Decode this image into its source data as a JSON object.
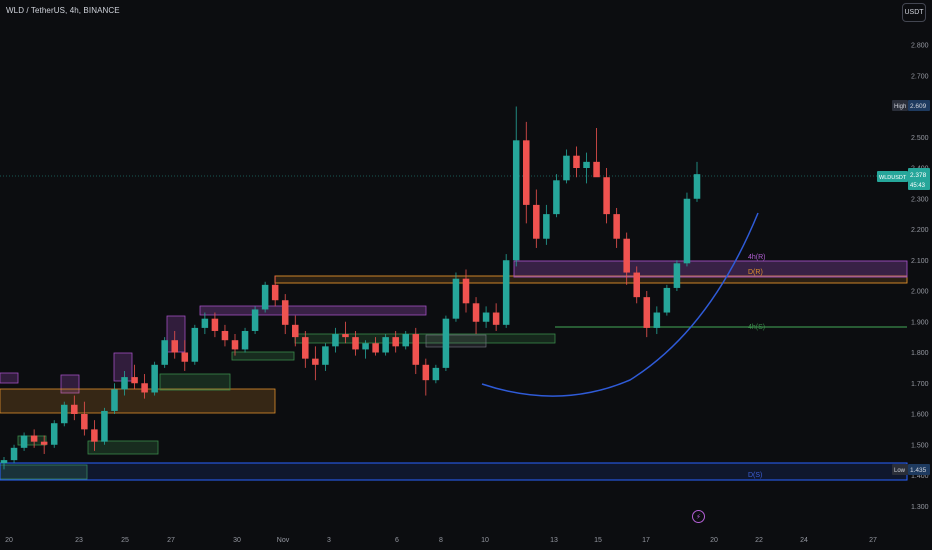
{
  "header": {
    "symbol_line": "WLD / TetherUS, 4h, BINANCE"
  },
  "currency": "USDT",
  "price_tags": {
    "high_label": "High",
    "high_value": "2.609",
    "current_symbol": "WLDUSDT",
    "current_value": "2.378",
    "countdown": "45:43",
    "low_label": "Low",
    "low_value": "1.435"
  },
  "zones": {
    "fourh_r": "4h(R)",
    "d_r": "D(R)",
    "fourh_s": "4h(S)",
    "d_s": "D(S)"
  },
  "colors": {
    "up": "#26a69a",
    "down": "#ef5350",
    "curve": "#2f5bd8",
    "purple_zone": "#a04fc0",
    "orange_zone": "#e0902c",
    "green_zone": "#3a8a4a",
    "blue_zone": "#2962ff"
  },
  "icons": {
    "events": "lightning-icon"
  },
  "chart_data": {
    "type": "candlestick",
    "y_ticks": [
      "2.800",
      "2.700",
      "2.600",
      "2.500",
      "2.400",
      "2.300",
      "2.200",
      "2.100",
      "2.000",
      "1.900",
      "1.800",
      "1.700",
      "1.600",
      "1.500",
      "1.400",
      "1.300"
    ],
    "x_ticks": [
      "20",
      "23",
      "25",
      "27",
      "30",
      "Nov",
      "3",
      "6",
      "8",
      "10",
      "13",
      "15",
      "17",
      "20",
      "22",
      "24",
      "27"
    ],
    "ylim": [
      1.25,
      2.85
    ],
    "candles": [
      {
        "o": 1.44,
        "h": 1.46,
        "l": 1.42,
        "c": 1.45
      },
      {
        "o": 1.45,
        "h": 1.5,
        "l": 1.44,
        "c": 1.49
      },
      {
        "o": 1.49,
        "h": 1.54,
        "l": 1.48,
        "c": 1.53
      },
      {
        "o": 1.53,
        "h": 1.55,
        "l": 1.49,
        "c": 1.51
      },
      {
        "o": 1.51,
        "h": 1.53,
        "l": 1.47,
        "c": 1.5
      },
      {
        "o": 1.5,
        "h": 1.58,
        "l": 1.49,
        "c": 1.57
      },
      {
        "o": 1.57,
        "h": 1.64,
        "l": 1.56,
        "c": 1.63
      },
      {
        "o": 1.63,
        "h": 1.66,
        "l": 1.58,
        "c": 1.6
      },
      {
        "o": 1.6,
        "h": 1.64,
        "l": 1.53,
        "c": 1.55
      },
      {
        "o": 1.55,
        "h": 1.58,
        "l": 1.48,
        "c": 1.51
      },
      {
        "o": 1.51,
        "h": 1.62,
        "l": 1.5,
        "c": 1.61
      },
      {
        "o": 1.61,
        "h": 1.7,
        "l": 1.6,
        "c": 1.68
      },
      {
        "o": 1.68,
        "h": 1.74,
        "l": 1.66,
        "c": 1.72
      },
      {
        "o": 1.72,
        "h": 1.76,
        "l": 1.68,
        "c": 1.7
      },
      {
        "o": 1.7,
        "h": 1.73,
        "l": 1.65,
        "c": 1.67
      },
      {
        "o": 1.67,
        "h": 1.77,
        "l": 1.66,
        "c": 1.76
      },
      {
        "o": 1.76,
        "h": 1.85,
        "l": 1.75,
        "c": 1.84
      },
      {
        "o": 1.84,
        "h": 1.87,
        "l": 1.78,
        "c": 1.8
      },
      {
        "o": 1.8,
        "h": 1.84,
        "l": 1.74,
        "c": 1.77
      },
      {
        "o": 1.77,
        "h": 1.89,
        "l": 1.76,
        "c": 1.88
      },
      {
        "o": 1.88,
        "h": 1.93,
        "l": 1.86,
        "c": 1.91
      },
      {
        "o": 1.91,
        "h": 1.93,
        "l": 1.85,
        "c": 1.87
      },
      {
        "o": 1.87,
        "h": 1.89,
        "l": 1.82,
        "c": 1.84
      },
      {
        "o": 1.84,
        "h": 1.86,
        "l": 1.79,
        "c": 1.81
      },
      {
        "o": 1.81,
        "h": 1.88,
        "l": 1.8,
        "c": 1.87
      },
      {
        "o": 1.87,
        "h": 1.95,
        "l": 1.86,
        "c": 1.94
      },
      {
        "o": 1.94,
        "h": 2.03,
        "l": 1.93,
        "c": 2.02
      },
      {
        "o": 2.02,
        "h": 2.05,
        "l": 1.95,
        "c": 1.97
      },
      {
        "o": 1.97,
        "h": 1.99,
        "l": 1.86,
        "c": 1.89
      },
      {
        "o": 1.89,
        "h": 1.92,
        "l": 1.82,
        "c": 1.85
      },
      {
        "o": 1.85,
        "h": 1.87,
        "l": 1.75,
        "c": 1.78
      },
      {
        "o": 1.78,
        "h": 1.82,
        "l": 1.71,
        "c": 1.76
      },
      {
        "o": 1.76,
        "h": 1.83,
        "l": 1.74,
        "c": 1.82
      },
      {
        "o": 1.82,
        "h": 1.88,
        "l": 1.8,
        "c": 1.86
      },
      {
        "o": 1.86,
        "h": 1.9,
        "l": 1.83,
        "c": 1.85
      },
      {
        "o": 1.85,
        "h": 1.87,
        "l": 1.79,
        "c": 1.81
      },
      {
        "o": 1.81,
        "h": 1.84,
        "l": 1.78,
        "c": 1.83
      },
      {
        "o": 1.83,
        "h": 1.85,
        "l": 1.79,
        "c": 1.8
      },
      {
        "o": 1.8,
        "h": 1.86,
        "l": 1.79,
        "c": 1.85
      },
      {
        "o": 1.85,
        "h": 1.87,
        "l": 1.8,
        "c": 1.82
      },
      {
        "o": 1.82,
        "h": 1.87,
        "l": 1.81,
        "c": 1.86
      },
      {
        "o": 1.86,
        "h": 1.88,
        "l": 1.73,
        "c": 1.76
      },
      {
        "o": 1.76,
        "h": 1.78,
        "l": 1.66,
        "c": 1.71
      },
      {
        "o": 1.71,
        "h": 1.76,
        "l": 1.7,
        "c": 1.75
      },
      {
        "o": 1.75,
        "h": 1.92,
        "l": 1.74,
        "c": 1.91
      },
      {
        "o": 1.91,
        "h": 2.06,
        "l": 1.9,
        "c": 2.04
      },
      {
        "o": 2.04,
        "h": 2.07,
        "l": 1.93,
        "c": 1.96
      },
      {
        "o": 1.96,
        "h": 1.98,
        "l": 1.86,
        "c": 1.9
      },
      {
        "o": 1.9,
        "h": 1.95,
        "l": 1.88,
        "c": 1.93
      },
      {
        "o": 1.93,
        "h": 1.96,
        "l": 1.87,
        "c": 1.89
      },
      {
        "o": 1.89,
        "h": 2.12,
        "l": 1.88,
        "c": 2.1
      },
      {
        "o": 2.1,
        "h": 2.6,
        "l": 2.08,
        "c": 2.49
      },
      {
        "o": 2.49,
        "h": 2.55,
        "l": 2.22,
        "c": 2.28
      },
      {
        "o": 2.28,
        "h": 2.33,
        "l": 2.14,
        "c": 2.17
      },
      {
        "o": 2.17,
        "h": 2.28,
        "l": 2.15,
        "c": 2.25
      },
      {
        "o": 2.25,
        "h": 2.38,
        "l": 2.24,
        "c": 2.36
      },
      {
        "o": 2.36,
        "h": 2.46,
        "l": 2.35,
        "c": 2.44
      },
      {
        "o": 2.44,
        "h": 2.47,
        "l": 2.37,
        "c": 2.4
      },
      {
        "o": 2.4,
        "h": 2.45,
        "l": 2.35,
        "c": 2.42
      },
      {
        "o": 2.42,
        "h": 2.53,
        "l": 2.38,
        "c": 2.37
      },
      {
        "o": 2.37,
        "h": 2.4,
        "l": 2.22,
        "c": 2.25
      },
      {
        "o": 2.25,
        "h": 2.27,
        "l": 2.14,
        "c": 2.17
      },
      {
        "o": 2.17,
        "h": 2.19,
        "l": 2.02,
        "c": 2.06
      },
      {
        "o": 2.06,
        "h": 2.08,
        "l": 1.96,
        "c": 1.98
      },
      {
        "o": 1.98,
        "h": 2.0,
        "l": 1.85,
        "c": 1.88
      },
      {
        "o": 1.88,
        "h": 1.95,
        "l": 1.86,
        "c": 1.93
      },
      {
        "o": 1.93,
        "h": 2.02,
        "l": 1.92,
        "c": 2.01
      },
      {
        "o": 2.01,
        "h": 2.1,
        "l": 2.0,
        "c": 2.09
      },
      {
        "o": 2.09,
        "h": 2.32,
        "l": 2.08,
        "c": 2.3
      },
      {
        "o": 2.3,
        "h": 2.42,
        "l": 2.29,
        "c": 2.38
      }
    ]
  }
}
